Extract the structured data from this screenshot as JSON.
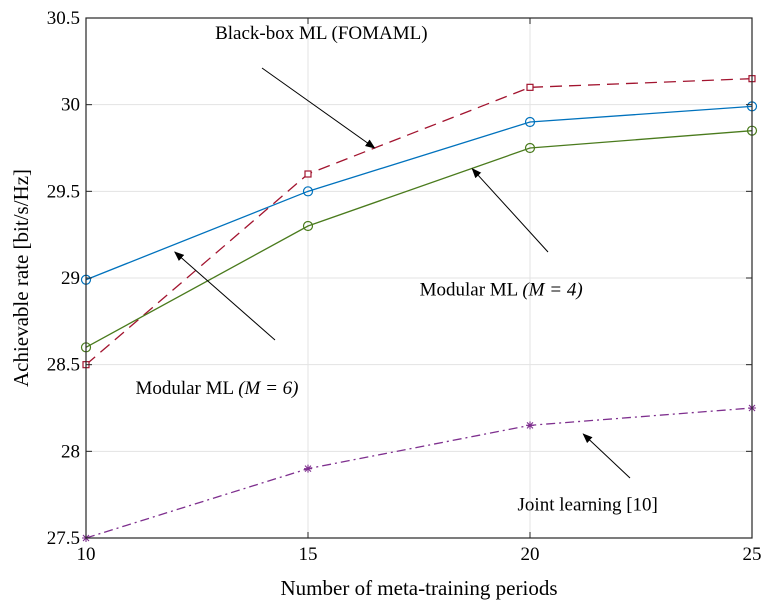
{
  "chart_data": {
    "type": "line",
    "title": "",
    "xlabel": "Number of meta-training periods",
    "ylabel": "Achievable rate [bit/s/Hz]",
    "x": [
      10,
      15,
      20,
      25
    ],
    "xlim": [
      10,
      25
    ],
    "ylim": [
      27.5,
      30.5
    ],
    "grid": true,
    "xticks": [
      10,
      15,
      20,
      25
    ],
    "yticks": [
      27.5,
      28,
      28.5,
      29,
      29.5,
      30,
      30.5
    ],
    "series": [
      {
        "name": "Black-box ML (FOMAML)",
        "values": [
          28.5,
          29.6,
          30.1,
          30.15
        ],
        "color": "#a2142f",
        "marker": "square",
        "dash": "dashed"
      },
      {
        "name": "Modular ML (M = 4)",
        "values": [
          28.6,
          29.3,
          29.75,
          29.85
        ],
        "color": "#4a7b1d",
        "marker": "circle",
        "dash": "solid"
      },
      {
        "name": "Modular ML (M = 6)",
        "values": [
          28.99,
          29.5,
          29.9,
          29.99
        ],
        "color": "#0072bd",
        "marker": "circle",
        "dash": "solid"
      },
      {
        "name": "Joint learning [10]",
        "values": [
          27.5,
          27.9,
          28.15,
          28.25
        ],
        "color": "#7e2f8e",
        "marker": "asterisk",
        "dash": "dashdot"
      }
    ],
    "annotations": [
      {
        "main": "Black-box ML (FOMAML)",
        "math": "",
        "series": 0,
        "target_x": 16.5,
        "target_y": 29.75,
        "label_pos": [
          15.3,
          30.38
        ]
      },
      {
        "main": "Modular ML ",
        "math": "(M = 4)",
        "series": 1,
        "target_x": 18.7,
        "target_y": 29.63,
        "label_pos": [
          19.35,
          28.9
        ]
      },
      {
        "main": "Modular ML ",
        "math": "(M = 6)",
        "series": 2,
        "target_x": 12.0,
        "target_y": 29.15,
        "label_pos": [
          12.95,
          28.33
        ]
      },
      {
        "main": "Joint learning [10]",
        "math": "",
        "series": 3,
        "target_x": 21.2,
        "target_y": 28.1,
        "label_pos": [
          21.3,
          27.66
        ]
      }
    ]
  }
}
